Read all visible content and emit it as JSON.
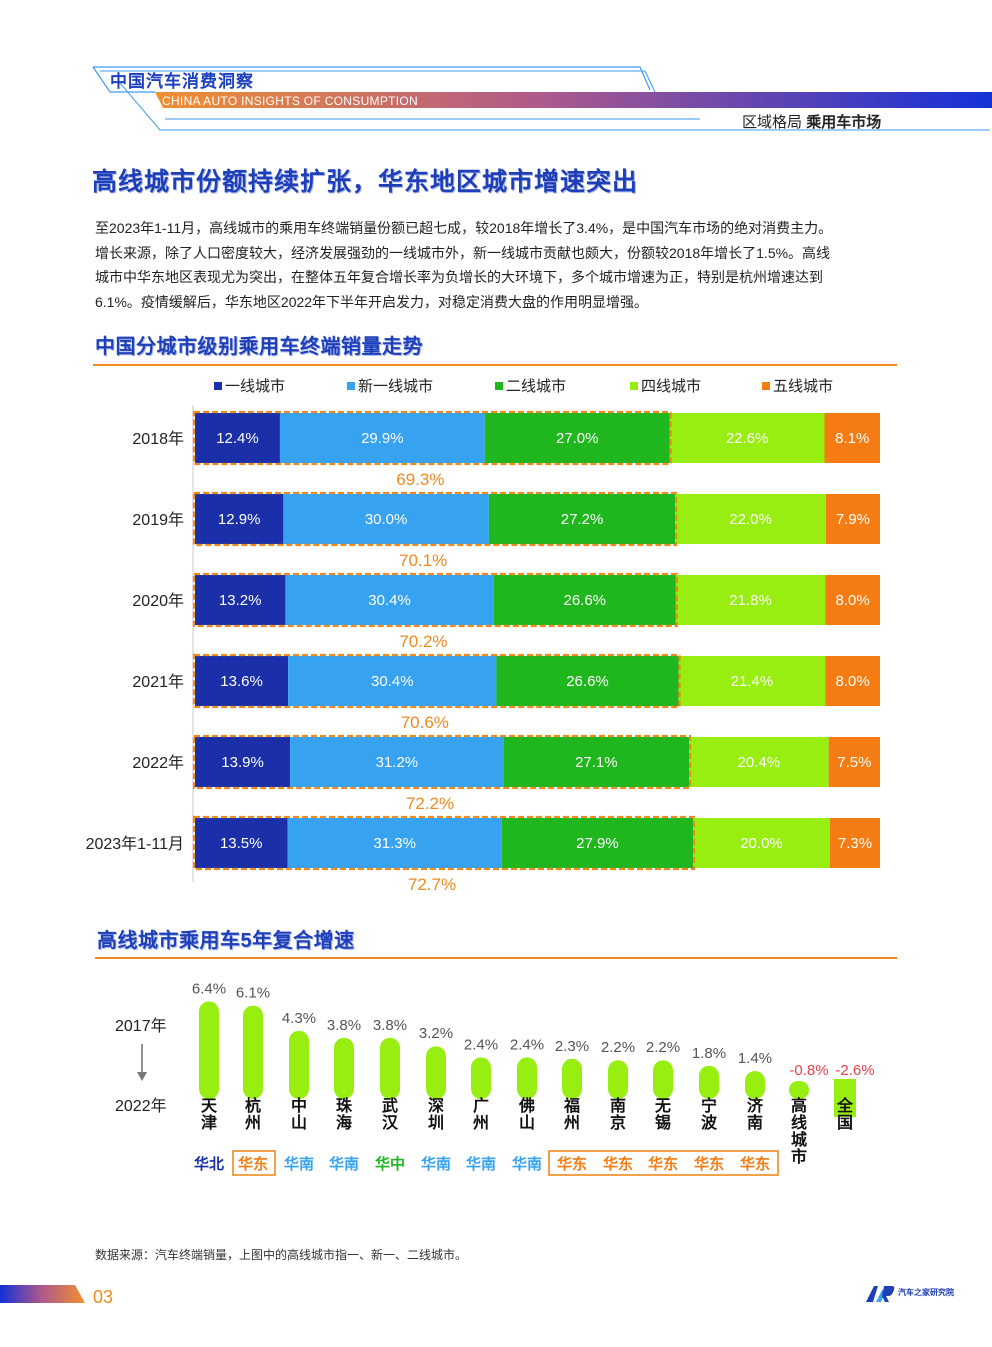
{
  "header": {
    "brand_cn": "中国汽车消费洞察",
    "brand_en": "CHINA AUTO INSIGHTS OF CONSUMPTION",
    "section_light": "区域格局",
    "section_bold": "乘用车市场"
  },
  "headline": "高线城市份额持续扩张，华东地区城市增速突出",
  "intro": [
    "至2023年1-11月，高线城市的乘用车终端销量份额已超七成，较2018年增长了3.4%，是中国汽车市场的绝对消费主力。",
    "增长来源，除了人口密度较大，经济发展强劲的一线城市外，新一线城市贡献也颇大，份额较2018年增长了1.5%。高线",
    "城市中华东地区表现尤为突出，在整体五年复合增长率为负增长的大环境下，多个城市增速为正，特别是杭州增速达到",
    "6.1%。疫情缓解后，华东地区2022年下半年开启发力，对稳定消费大盘的作用明显增强。"
  ],
  "colors": {
    "tier1": "#1a2fa8",
    "new_tier1": "#36a2f0",
    "tier2": "#1fb61e",
    "tier4": "#98ee10",
    "tier5": "#f47c12",
    "accent_orange": "#ee8a1e",
    "title_blue": "#1e3fb8",
    "negative_red": "#e8414a"
  },
  "chart_data": [
    {
      "type": "bar",
      "orientation": "horizontal-stacked",
      "title": "中国分城市级别乘用车终端销量走势",
      "categories": [
        "2018年",
        "2019年",
        "2020年",
        "2021年",
        "2022年",
        "2023年1-11月"
      ],
      "series": [
        {
          "name": "一线城市",
          "color": "#1a2fa8",
          "values": [
            12.4,
            12.9,
            13.2,
            13.6,
            13.9,
            13.5
          ],
          "labels": [
            "12.4%",
            "12.9%",
            "13.2%",
            "13.6%",
            "13.9%",
            "13.5%"
          ]
        },
        {
          "name": "新一线城市",
          "color": "#36a2f0",
          "values": [
            29.9,
            30.0,
            30.4,
            30.4,
            31.2,
            31.3
          ],
          "labels": [
            "29.9%",
            "30.0%",
            "30.4%",
            "30.4%",
            "31.2%",
            "31.3%"
          ]
        },
        {
          "name": "二线城市",
          "color": "#1fb61e",
          "values": [
            27.0,
            27.2,
            26.6,
            26.6,
            27.1,
            27.9
          ],
          "labels": [
            "27.0%",
            "27.2%",
            "26.6%",
            "26.6%",
            "27.1%",
            "27.9%"
          ]
        },
        {
          "name": "四线城市",
          "color": "#98ee10",
          "values": [
            22.6,
            22.0,
            21.8,
            21.4,
            20.4,
            20.0
          ],
          "labels": [
            "22.6%",
            "22.0%",
            "21.8%",
            "21.4%",
            "20.4%",
            "20.0%"
          ]
        },
        {
          "name": "五线城市",
          "color": "#f47c12",
          "values": [
            8.1,
            7.9,
            8.0,
            8.0,
            7.5,
            7.3
          ],
          "labels": [
            "8.1%",
            "7.9%",
            "8.0%",
            "8.0%",
            "7.5%",
            "7.3%"
          ]
        }
      ],
      "high_tier_totals": [
        69.3,
        70.1,
        70.2,
        70.6,
        72.2,
        72.7
      ],
      "high_tier_labels": [
        "69.3%",
        "70.1%",
        "70.2%",
        "70.6%",
        "72.2%",
        "72.7%"
      ],
      "legend": "top"
    },
    {
      "type": "bar",
      "orientation": "vertical",
      "title": "高线城市乘用车5年复合增速",
      "period_start": "2017年",
      "period_end": "2022年",
      "categories": [
        "天津",
        "杭州",
        "中山",
        "珠海",
        "武汉",
        "深圳",
        "广州",
        "佛山",
        "福州",
        "南京",
        "无锡",
        "宁波",
        "济南",
        "高线城市",
        "全国"
      ],
      "values": [
        6.4,
        6.1,
        4.3,
        3.8,
        3.8,
        3.2,
        2.4,
        2.4,
        2.3,
        2.2,
        2.2,
        1.8,
        1.4,
        -0.8,
        -2.6
      ],
      "value_labels": [
        "6.4%",
        "6.1%",
        "4.3%",
        "3.8%",
        "3.8%",
        "3.2%",
        "2.4%",
        "2.4%",
        "2.3%",
        "2.2%",
        "2.2%",
        "1.8%",
        "1.4%",
        "-0.8%",
        "-2.6%"
      ],
      "regions": [
        {
          "label": "华北",
          "color": "#1a2fa8"
        },
        {
          "label": "华东",
          "color": "#f47c12"
        },
        {
          "label": "华南",
          "color": "#36a2f0"
        },
        {
          "label": "华南",
          "color": "#36a2f0"
        },
        {
          "label": "华中",
          "color": "#1fb61e"
        },
        {
          "label": "华南",
          "color": "#36a2f0"
        },
        {
          "label": "华南",
          "color": "#36a2f0"
        },
        {
          "label": "华南",
          "color": "#36a2f0"
        },
        {
          "label": "华东",
          "color": "#f47c12"
        },
        {
          "label": "华东",
          "color": "#f47c12"
        },
        {
          "label": "华东",
          "color": "#f47c12"
        },
        {
          "label": "华东",
          "color": "#f47c12"
        },
        {
          "label": "华东",
          "color": "#f47c12"
        }
      ]
    }
  ],
  "footnote": "数据来源：汽车终端销量，上图中的高线城市指一、新一、二线城市。",
  "page_number": "03",
  "logo_text": "汽车之家研究院"
}
